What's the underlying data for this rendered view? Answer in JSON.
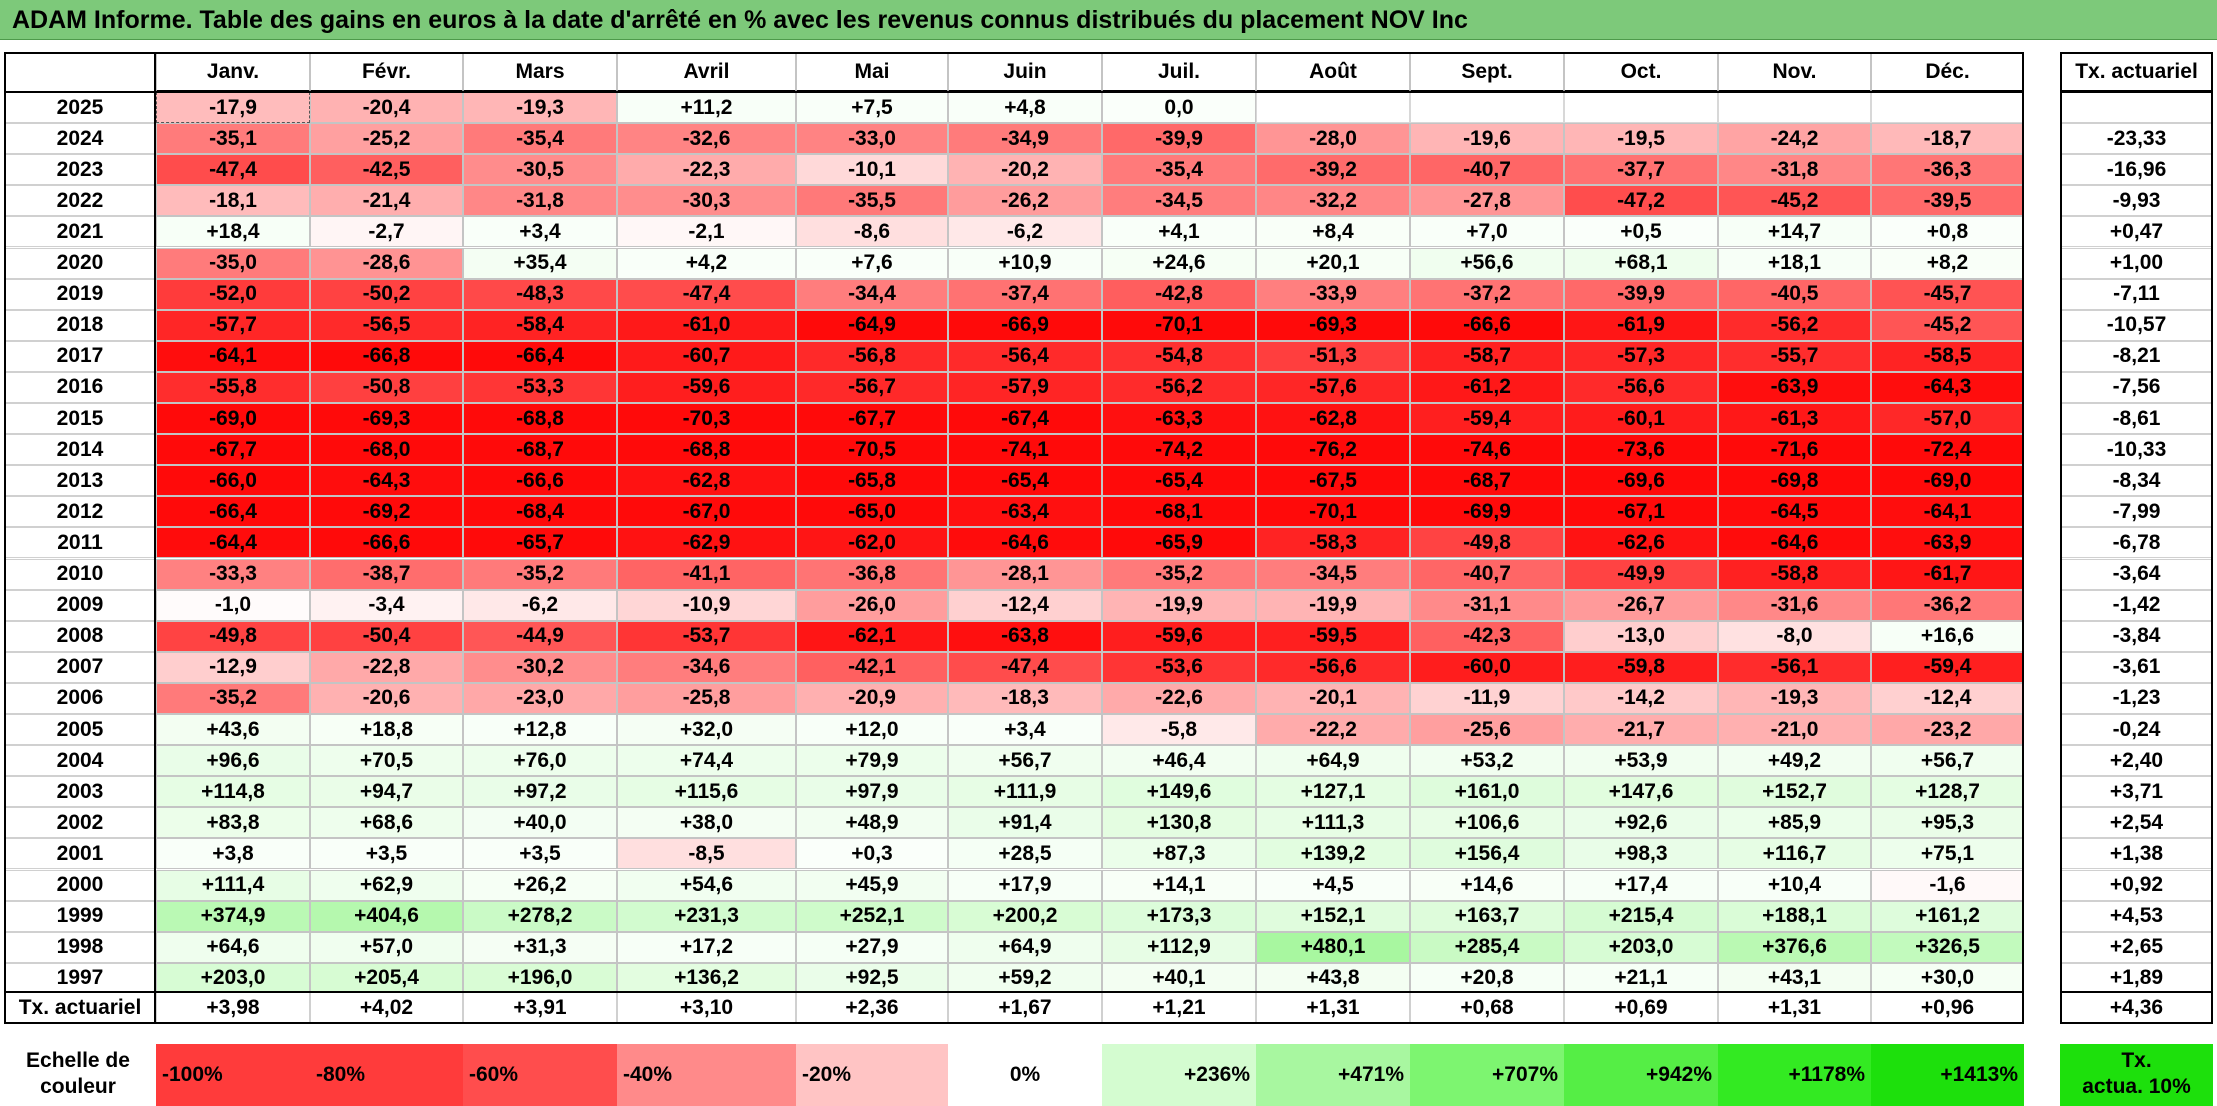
{
  "title": "ADAM Informe. Table des gains en euros à la date d'arrêté en % avec les revenus connus distribués du placement NOV Inc",
  "chart_data": {
    "type": "table",
    "months": [
      "Janv.",
      "Févr.",
      "Mars",
      "Avril",
      "Mai",
      "Juin",
      "Juil.",
      "Août",
      "Sept.",
      "Oct.",
      "Nov.",
      "Déc."
    ],
    "tx_header": "Tx. actuariel",
    "rows": [
      {
        "year": "2025",
        "values": [
          "-17,9",
          "-20,4",
          "-19,3",
          "+11,2",
          "+7,5",
          "+4,8",
          "0,0",
          "",
          "",
          "",
          "",
          ""
        ],
        "tx": ""
      },
      {
        "year": "2024",
        "values": [
          "-35,1",
          "-25,2",
          "-35,4",
          "-32,6",
          "-33,0",
          "-34,9",
          "-39,9",
          "-28,0",
          "-19,6",
          "-19,5",
          "-24,2",
          "-18,7"
        ],
        "tx": "-23,33"
      },
      {
        "year": "2023",
        "values": [
          "-47,4",
          "-42,5",
          "-30,5",
          "-22,3",
          "-10,1",
          "-20,2",
          "-35,4",
          "-39,2",
          "-40,7",
          "-37,7",
          "-31,8",
          "-36,3"
        ],
        "tx": "-16,96"
      },
      {
        "year": "2022",
        "values": [
          "-18,1",
          "-21,4",
          "-31,8",
          "-30,3",
          "-35,5",
          "-26,2",
          "-34,5",
          "-32,2",
          "-27,8",
          "-47,2",
          "-45,2",
          "-39,5"
        ],
        "tx": "-9,93"
      },
      {
        "year": "2021",
        "values": [
          "+18,4",
          "-2,7",
          "+3,4",
          "-2,1",
          "-8,6",
          "-6,2",
          "+4,1",
          "+8,4",
          "+7,0",
          "+0,5",
          "+14,7",
          "+0,8"
        ],
        "tx": "+0,47"
      },
      {
        "year": "2020",
        "values": [
          "-35,0",
          "-28,6",
          "+35,4",
          "+4,2",
          "+7,6",
          "+10,9",
          "+24,6",
          "+20,1",
          "+56,6",
          "+68,1",
          "+18,1",
          "+8,2"
        ],
        "tx": "+1,00"
      },
      {
        "year": "2019",
        "values": [
          "-52,0",
          "-50,2",
          "-48,3",
          "-47,4",
          "-34,4",
          "-37,4",
          "-42,8",
          "-33,9",
          "-37,2",
          "-39,9",
          "-40,5",
          "-45,7"
        ],
        "tx": "-7,11"
      },
      {
        "year": "2018",
        "values": [
          "-57,7",
          "-56,5",
          "-58,4",
          "-61,0",
          "-64,9",
          "-66,9",
          "-70,1",
          "-69,3",
          "-66,6",
          "-61,9",
          "-56,2",
          "-45,2"
        ],
        "tx": "-10,57"
      },
      {
        "year": "2017",
        "values": [
          "-64,1",
          "-66,8",
          "-66,4",
          "-60,7",
          "-56,8",
          "-56,4",
          "-54,8",
          "-51,3",
          "-58,7",
          "-57,3",
          "-55,7",
          "-58,5"
        ],
        "tx": "-8,21"
      },
      {
        "year": "2016",
        "values": [
          "-55,8",
          "-50,8",
          "-53,3",
          "-59,6",
          "-56,7",
          "-57,9",
          "-56,2",
          "-57,6",
          "-61,2",
          "-56,6",
          "-63,9",
          "-64,3"
        ],
        "tx": "-7,56"
      },
      {
        "year": "2015",
        "values": [
          "-69,0",
          "-69,3",
          "-68,8",
          "-70,3",
          "-67,7",
          "-67,4",
          "-63,3",
          "-62,8",
          "-59,4",
          "-60,1",
          "-61,3",
          "-57,0"
        ],
        "tx": "-8,61"
      },
      {
        "year": "2014",
        "values": [
          "-67,7",
          "-68,0",
          "-68,7",
          "-68,8",
          "-70,5",
          "-74,1",
          "-74,2",
          "-76,2",
          "-74,6",
          "-73,6",
          "-71,6",
          "-72,4"
        ],
        "tx": "-10,33"
      },
      {
        "year": "2013",
        "values": [
          "-66,0",
          "-64,3",
          "-66,6",
          "-62,8",
          "-65,8",
          "-65,4",
          "-65,4",
          "-67,5",
          "-68,7",
          "-69,6",
          "-69,8",
          "-69,0"
        ],
        "tx": "-8,34"
      },
      {
        "year": "2012",
        "values": [
          "-66,4",
          "-69,2",
          "-68,4",
          "-67,0",
          "-65,0",
          "-63,4",
          "-68,1",
          "-70,1",
          "-69,9",
          "-67,1",
          "-64,5",
          "-64,1"
        ],
        "tx": "-7,99"
      },
      {
        "year": "2011",
        "values": [
          "-64,4",
          "-66,6",
          "-65,7",
          "-62,9",
          "-62,0",
          "-64,6",
          "-65,9",
          "-58,3",
          "-49,8",
          "-62,6",
          "-64,6",
          "-63,9"
        ],
        "tx": "-6,78"
      },
      {
        "year": "2010",
        "values": [
          "-33,3",
          "-38,7",
          "-35,2",
          "-41,1",
          "-36,8",
          "-28,1",
          "-35,2",
          "-34,5",
          "-40,7",
          "-49,9",
          "-58,8",
          "-61,7"
        ],
        "tx": "-3,64"
      },
      {
        "year": "2009",
        "values": [
          "-1,0",
          "-3,4",
          "-6,2",
          "-10,9",
          "-26,0",
          "-12,4",
          "-19,9",
          "-19,9",
          "-31,1",
          "-26,7",
          "-31,6",
          "-36,2"
        ],
        "tx": "-1,42"
      },
      {
        "year": "2008",
        "values": [
          "-49,8",
          "-50,4",
          "-44,9",
          "-53,7",
          "-62,1",
          "-63,8",
          "-59,6",
          "-59,5",
          "-42,3",
          "-13,0",
          "-8,0",
          "+16,6"
        ],
        "tx": "-3,84"
      },
      {
        "year": "2007",
        "values": [
          "-12,9",
          "-22,8",
          "-30,2",
          "-34,6",
          "-42,1",
          "-47,4",
          "-53,6",
          "-56,6",
          "-60,0",
          "-59,8",
          "-56,1",
          "-59,4"
        ],
        "tx": "-3,61"
      },
      {
        "year": "2006",
        "values": [
          "-35,2",
          "-20,6",
          "-23,0",
          "-25,8",
          "-20,9",
          "-18,3",
          "-22,6",
          "-20,1",
          "-11,9",
          "-14,2",
          "-19,3",
          "-12,4"
        ],
        "tx": "-1,23"
      },
      {
        "year": "2005",
        "values": [
          "+43,6",
          "+18,8",
          "+12,8",
          "+32,0",
          "+12,0",
          "+3,4",
          "-5,8",
          "-22,2",
          "-25,6",
          "-21,7",
          "-21,0",
          "-23,2"
        ],
        "tx": "-0,24"
      },
      {
        "year": "2004",
        "values": [
          "+96,6",
          "+70,5",
          "+76,0",
          "+74,4",
          "+79,9",
          "+56,7",
          "+46,4",
          "+64,9",
          "+53,2",
          "+53,9",
          "+49,2",
          "+56,7"
        ],
        "tx": "+2,40"
      },
      {
        "year": "2003",
        "values": [
          "+114,8",
          "+94,7",
          "+97,2",
          "+115,6",
          "+97,9",
          "+111,9",
          "+149,6",
          "+127,1",
          "+161,0",
          "+147,6",
          "+152,7",
          "+128,7"
        ],
        "tx": "+3,71"
      },
      {
        "year": "2002",
        "values": [
          "+83,8",
          "+68,6",
          "+40,0",
          "+38,0",
          "+48,9",
          "+91,4",
          "+130,8",
          "+111,3",
          "+106,6",
          "+92,6",
          "+85,9",
          "+95,3"
        ],
        "tx": "+2,54"
      },
      {
        "year": "2001",
        "values": [
          "+3,8",
          "+3,5",
          "+3,5",
          "-8,5",
          "+0,3",
          "+28,5",
          "+87,3",
          "+139,2",
          "+156,4",
          "+98,3",
          "+116,7",
          "+75,1"
        ],
        "tx": "+1,38"
      },
      {
        "year": "2000",
        "values": [
          "+111,4",
          "+62,9",
          "+26,2",
          "+54,6",
          "+45,9",
          "+17,9",
          "+14,1",
          "+4,5",
          "+14,6",
          "+17,4",
          "+10,4",
          "-1,6"
        ],
        "tx": "+0,92"
      },
      {
        "year": "1999",
        "values": [
          "+374,9",
          "+404,6",
          "+278,2",
          "+231,3",
          "+252,1",
          "+200,2",
          "+173,3",
          "+152,1",
          "+163,7",
          "+215,4",
          "+188,1",
          "+161,2"
        ],
        "tx": "+4,53"
      },
      {
        "year": "1998",
        "values": [
          "+64,6",
          "+57,0",
          "+31,3",
          "+17,2",
          "+27,9",
          "+64,9",
          "+112,9",
          "+480,1",
          "+285,4",
          "+203,0",
          "+376,6",
          "+326,5"
        ],
        "tx": "+2,65"
      },
      {
        "year": "1997",
        "values": [
          "+203,0",
          "+205,4",
          "+196,0",
          "+136,2",
          "+92,5",
          "+59,2",
          "+40,1",
          "+43,8",
          "+20,8",
          "+21,1",
          "+43,1",
          "+30,0"
        ],
        "tx": "+1,89"
      }
    ],
    "summary_row": {
      "label": "Tx. actuariel",
      "values": [
        "+3,98",
        "+4,02",
        "+3,91",
        "+3,10",
        "+2,36",
        "+1,67",
        "+1,21",
        "+1,31",
        "+0,68",
        "+0,69",
        "+1,31",
        "+0,96"
      ],
      "tx": "+4,36"
    },
    "legend": {
      "label_line1": "Echelle de",
      "label_line2": "couleur",
      "items": [
        {
          "label": "-100%",
          "color": "#ff3b3b"
        },
        {
          "label": "-80%",
          "color": "#ff3b3b"
        },
        {
          "label": "-60%",
          "color": "#ff4d4d"
        },
        {
          "label": "-40%",
          "color": "#ff8a8a"
        },
        {
          "label": "-20%",
          "color": "#ffc4c4"
        },
        {
          "label": "0%",
          "color": "#ffffff"
        },
        {
          "label": "+236%",
          "color": "#d4fcd0"
        },
        {
          "label": "+471%",
          "color": "#a8f7a0"
        },
        {
          "label": "+707%",
          "color": "#7df570"
        },
        {
          "label": "+942%",
          "color": "#55ee45"
        },
        {
          "label": "+1178%",
          "color": "#33ea22"
        },
        {
          "label": "+1413%",
          "color": "#1de00c"
        }
      ],
      "tx_label_line1": "Tx.",
      "tx_label_line2": "actua. 10%",
      "tx_color": "#1de00c"
    }
  }
}
